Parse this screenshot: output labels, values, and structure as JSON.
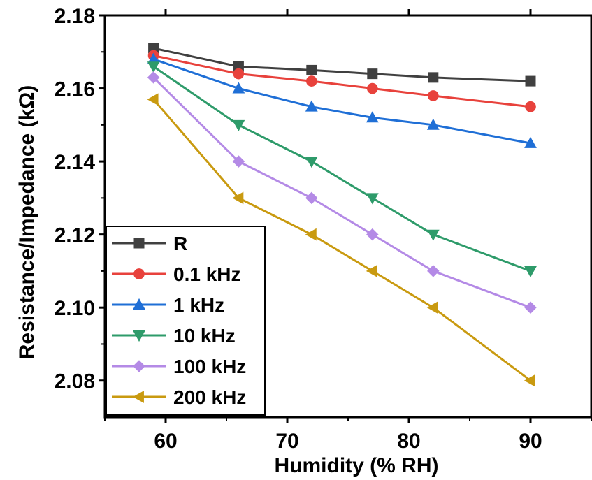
{
  "chart_data": {
    "type": "line",
    "xlabel": "Humidity (% RH)",
    "ylabel": "Resistance/Impedance (kΩ)",
    "xlim": [
      55,
      95
    ],
    "ylim": [
      2.07,
      2.18
    ],
    "x_ticks": [
      60,
      70,
      80,
      90
    ],
    "x_tick_labels": [
      "60",
      "70",
      "80",
      "90"
    ],
    "y_ticks": [
      2.08,
      2.1,
      2.12,
      2.14,
      2.16,
      2.18
    ],
    "y_tick_labels": [
      "2.08",
      "2.10",
      "2.12",
      "2.14",
      "2.16",
      "2.18"
    ],
    "grid": false,
    "legend_position": "bottom-left",
    "x": [
      59,
      66,
      72,
      77,
      82,
      90
    ],
    "series": [
      {
        "name": "R",
        "color": "#404040",
        "marker": "square",
        "values": [
          2.171,
          2.166,
          2.165,
          2.164,
          2.163,
          2.162
        ]
      },
      {
        "name": "0.1 kHz",
        "color": "#e8423c",
        "marker": "circle",
        "values": [
          2.169,
          2.164,
          2.162,
          2.16,
          2.158,
          2.155
        ]
      },
      {
        "name": "1 kHz",
        "color": "#1f6fd6",
        "marker": "triangle-up",
        "values": [
          2.168,
          2.16,
          2.155,
          2.152,
          2.15,
          2.145
        ]
      },
      {
        "name": "10 kHz",
        "color": "#2e9b6a",
        "marker": "triangle-down",
        "values": [
          2.166,
          2.15,
          2.14,
          2.13,
          2.12,
          2.11
        ]
      },
      {
        "name": "100 kHz",
        "color": "#b48ae6",
        "marker": "diamond",
        "values": [
          2.163,
          2.14,
          2.13,
          2.12,
          2.11,
          2.1
        ]
      },
      {
        "name": "200 kHz",
        "color": "#c99a10",
        "marker": "triangle-left",
        "values": [
          2.157,
          2.13,
          2.12,
          2.11,
          2.1,
          2.08
        ]
      }
    ]
  }
}
